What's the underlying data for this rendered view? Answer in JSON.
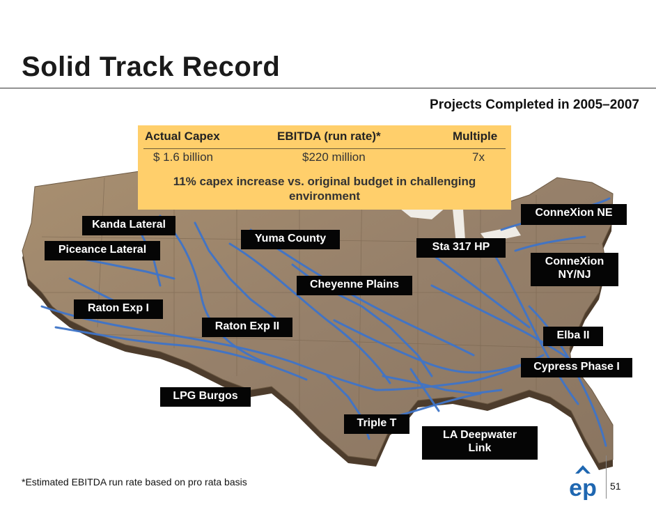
{
  "header": {
    "title": "Solid Track Record",
    "subtitle": "Projects Completed in 2005–2007"
  },
  "stats": {
    "headers": {
      "capex": "Actual Capex",
      "ebitda": "EBITDA (run rate)*",
      "multiple": "Multiple"
    },
    "values": {
      "capex": "$ 1.6 billion",
      "ebitda": "$220 million",
      "multiple": "7x"
    },
    "note": "11% capex increase vs. original budget in challenging environment"
  },
  "projects": {
    "kanda_lateral": "Kanda Lateral",
    "piceance_lateral": "Piceance Lateral",
    "yuma_county": "Yuma County",
    "sta_317_hp": "Sta 317 HP",
    "connexion_ne": "ConneXion NE",
    "connexion_nynj": "ConneXion\nNY/NJ",
    "cheyenne_plains": "Cheyenne Plains",
    "raton_exp_i": "Raton Exp I",
    "raton_exp_ii": "Raton Exp II",
    "elba_ii": "Elba II",
    "cypress_phase_i": "Cypress Phase I",
    "lpg_burgos": "LPG Burgos",
    "triple_t": "Triple T",
    "la_deepwater_link": "LA Deepwater\nLink"
  },
  "footer": {
    "footnote": "*Estimated EBITDA run rate based on pro rata basis",
    "logo_text": "ep",
    "page_number": "51"
  },
  "colors": {
    "map_land": "#9c8466",
    "map_edge": "#5c4a36",
    "pipeline": "#3f74c8",
    "stats_box": "#ffcf6b",
    "label_bg": "#050505",
    "logo_blue": "#1f67b1"
  },
  "icons": {
    "logo": "el-paso-logo-icon"
  }
}
